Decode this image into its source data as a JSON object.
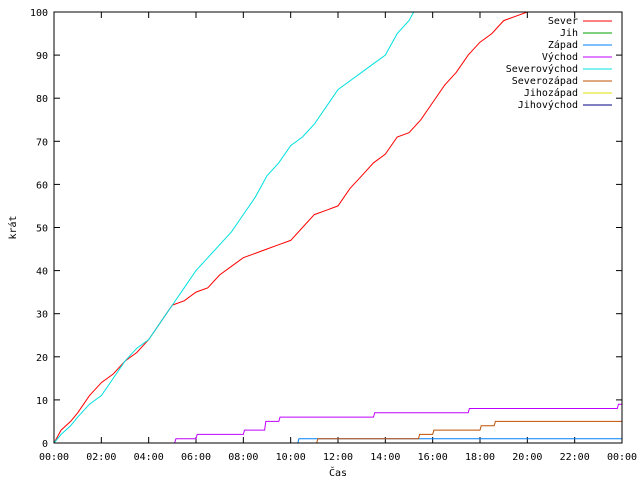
{
  "chart_data": {
    "type": "line",
    "xlabel": "Čas",
    "ylabel": "krát",
    "xlim": [
      0,
      24
    ],
    "ylim": [
      0,
      100
    ],
    "x_ticks": [
      "00:00",
      "02:00",
      "04:00",
      "06:00",
      "08:00",
      "10:00",
      "12:00",
      "14:00",
      "16:00",
      "18:00",
      "20:00",
      "22:00",
      "00:00"
    ],
    "y_ticks": [
      "0",
      "10",
      "20",
      "30",
      "40",
      "50",
      "60",
      "70",
      "80",
      "90",
      "100"
    ],
    "grid": false,
    "legend_position": "top-right",
    "series": [
      {
        "name": "Sever",
        "color": "#ff0000",
        "x": [
          0,
          0.3,
          0.7,
          1.0,
          1.5,
          2.0,
          2.5,
          3.0,
          3.5,
          4.0,
          4.5,
          5.0,
          5.5,
          6.0,
          6.5,
          7.0,
          7.5,
          8.0,
          8.5,
          9.0,
          9.5,
          10.0,
          10.5,
          11.0,
          11.5,
          12.0,
          12.5,
          13.0,
          13.5,
          14.0,
          14.5,
          15.0,
          15.5,
          16.0,
          16.5,
          17.0,
          17.5,
          18.0,
          18.5,
          19.0,
          19.5,
          20.0,
          20.3
        ],
        "values": [
          0,
          3,
          5,
          7,
          11,
          14,
          16,
          19,
          21,
          24,
          28,
          32,
          33,
          35,
          36,
          39,
          41,
          43,
          44,
          45,
          46,
          47,
          50,
          53,
          54,
          55,
          59,
          62,
          65,
          67,
          71,
          72,
          75,
          79,
          83,
          86,
          90,
          93,
          95,
          98,
          99,
          100,
          100
        ]
      },
      {
        "name": "Jih",
        "color": "#00a000",
        "x": [],
        "values": []
      },
      {
        "name": "Západ",
        "color": "#0080ff",
        "x": [
          0,
          10.3,
          10.35,
          24
        ],
        "values": [
          0,
          0,
          1,
          1
        ]
      },
      {
        "name": "Východ",
        "color": "#c000ff",
        "x": [
          0,
          5.1,
          5.15,
          6.0,
          6.05,
          8.0,
          8.05,
          8.9,
          8.95,
          9.5,
          9.55,
          13.5,
          13.55,
          17.5,
          17.55,
          23.8,
          23.85,
          24
        ],
        "values": [
          0,
          0,
          1,
          1,
          2,
          2,
          3,
          3,
          5,
          5,
          6,
          6,
          7,
          7,
          8,
          8,
          9,
          9
        ]
      },
      {
        "name": "Severovýchod",
        "color": "#00e0e0",
        "x": [
          0,
          0.3,
          0.7,
          1.0,
          1.5,
          2.0,
          2.5,
          3.0,
          3.5,
          4.0,
          4.5,
          5.0,
          5.5,
          6.0,
          6.5,
          7.0,
          7.5,
          8.0,
          8.5,
          9.0,
          9.5,
          10.0,
          10.5,
          11.0,
          11.5,
          12.0,
          12.5,
          13.0,
          13.5,
          14.0,
          14.5,
          15.0,
          15.2
        ],
        "values": [
          0,
          2,
          4,
          6,
          9,
          11,
          15,
          19,
          22,
          24,
          28,
          32,
          36,
          40,
          43,
          46,
          49,
          53,
          57,
          62,
          65,
          69,
          71,
          74,
          78,
          82,
          84,
          86,
          88,
          90,
          95,
          98,
          100
        ]
      },
      {
        "name": "Severozápad",
        "color": "#c05000",
        "x": [
          0,
          11.1,
          11.15,
          15.4,
          15.45,
          16.0,
          16.05,
          18.0,
          18.05,
          18.6,
          18.65,
          24
        ],
        "values": [
          0,
          0,
          1,
          1,
          2,
          2,
          3,
          3,
          4,
          4,
          5,
          5
        ]
      },
      {
        "name": "Jihozápad",
        "color": "#e0e000",
        "x": [],
        "values": []
      },
      {
        "name": "Jihovýchod",
        "color": "#000080",
        "x": [],
        "values": []
      }
    ]
  }
}
